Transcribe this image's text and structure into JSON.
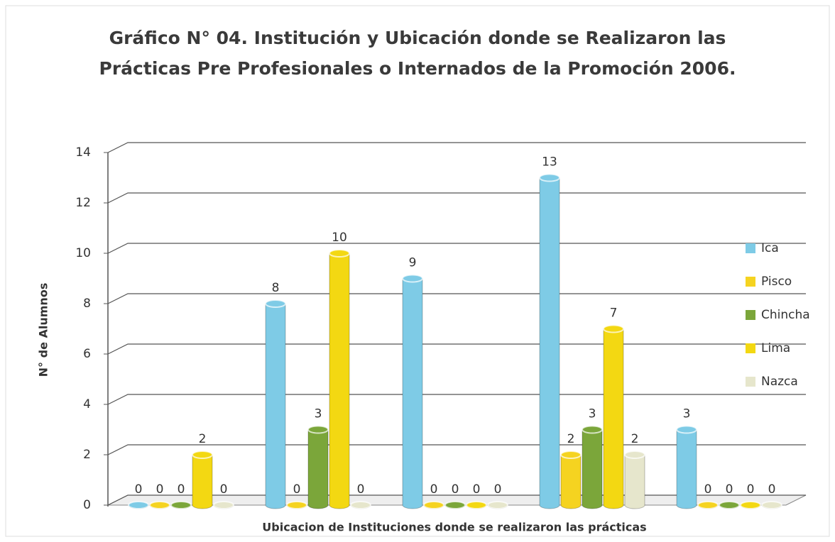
{
  "chart_data": {
    "type": "bar",
    "title": [
      "Gráfico  N° 04. Institución y Ubicación donde se Realizaron las",
      "Prácticas Pre Profesionales o Internados de la Promoción 2006."
    ],
    "x_label": "Ubicacion de Instituciones donde se realizaron las prácticas",
    "y_label": "N° de Alumnos",
    "categories": [
      null,
      null,
      null,
      null,
      null
    ],
    "series": [
      {
        "name": "Ica",
        "color": "#7ecbe6",
        "values": [
          0,
          8,
          9,
          13,
          3
        ]
      },
      {
        "name": "Pisco",
        "color": "#f5d320",
        "values": [
          0,
          0,
          0,
          2,
          0
        ]
      },
      {
        "name": "Chincha",
        "color": "#7ba63a",
        "values": [
          0,
          3,
          0,
          3,
          0
        ]
      },
      {
        "name": "Lima",
        "color": "#f3d812",
        "values": [
          2,
          10,
          0,
          7,
          0
        ]
      },
      {
        "name": "Nazca",
        "color": "#e6e6cc",
        "values": [
          0,
          0,
          0,
          2,
          0
        ]
      }
    ],
    "ylim": [
      0,
      14
    ],
    "yticks": [
      0,
      2,
      4,
      6,
      8,
      10,
      12,
      14
    ],
    "grid": true,
    "legend": "right"
  }
}
